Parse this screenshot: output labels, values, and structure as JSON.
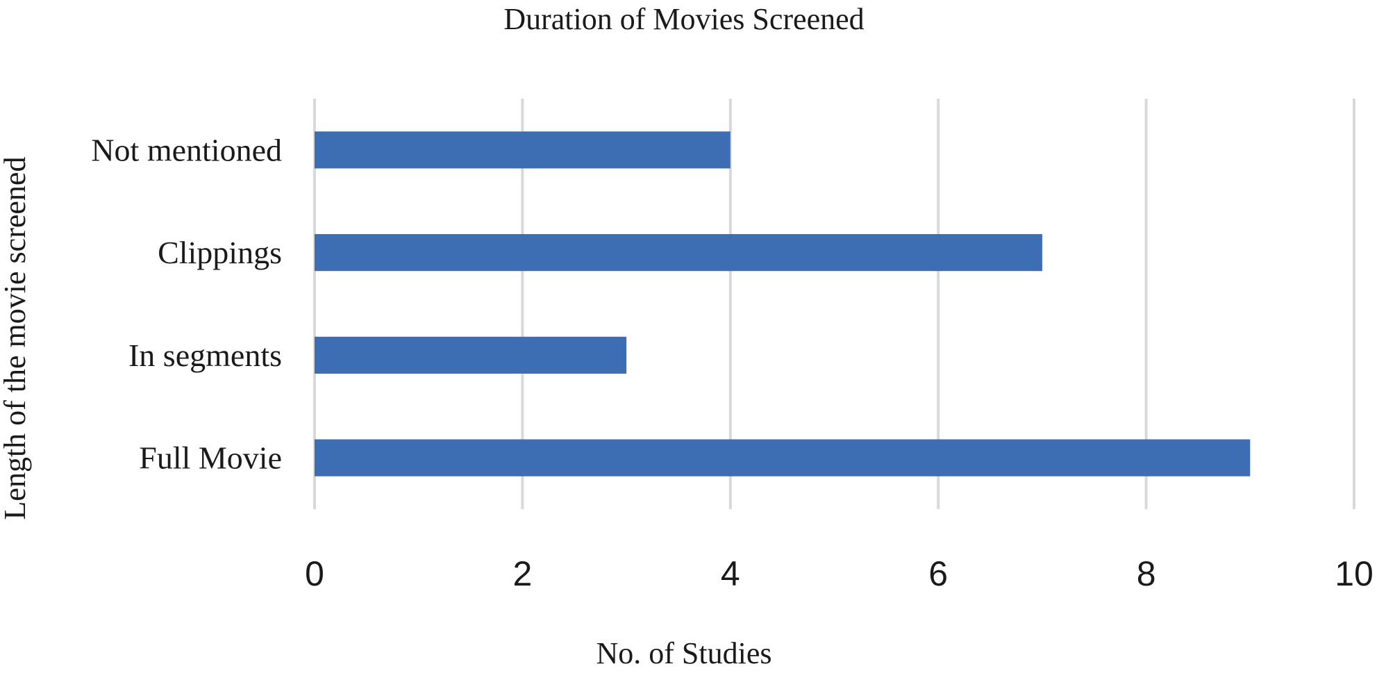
{
  "chart_data": {
    "type": "bar",
    "orientation": "horizontal",
    "title": "Duration of Movies Screened",
    "xlabel": "No. of Studies",
    "ylabel": "Length of the movie screened",
    "categories": [
      "Full Movie",
      "In segments",
      "Clippings",
      "Not mentioned"
    ],
    "values": [
      9,
      3,
      7,
      4
    ],
    "xlim": [
      0,
      10
    ],
    "xticks": [
      "0",
      "2",
      "4",
      "6",
      "8",
      "10"
    ],
    "grid": "vertical",
    "legend": "none",
    "colors": {
      "bar": "#3d6db3",
      "grid": "#d9d9d9",
      "text": "#1a1a1a"
    }
  }
}
